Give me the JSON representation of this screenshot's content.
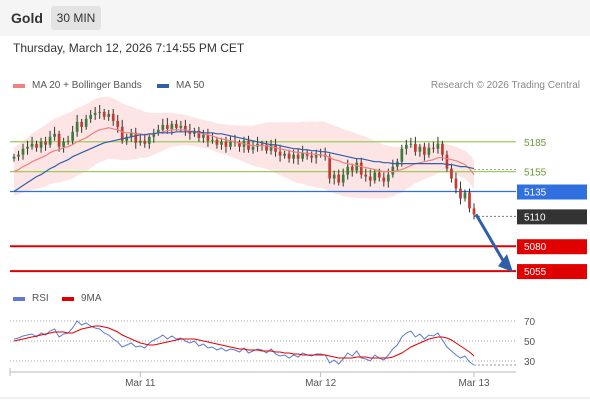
{
  "header": {
    "instrument": "Gold",
    "timeframe": "30 MIN"
  },
  "timestamp": "Thursday, March 12, 2026 7:14:55 PM CET",
  "legend_top": [
    {
      "label": "MA 20 + Bollinger Bands",
      "color": "#f08080"
    },
    {
      "label": "MA 50",
      "color": "#2f5fa8"
    }
  ],
  "credit": "Research © 2026 Trading Central",
  "legend_bottom": [
    {
      "label": "RSI",
      "color": "#5b7bd5"
    },
    {
      "label": "9MA",
      "color": "#e00000"
    }
  ],
  "chart_data": [
    {
      "type": "candlestick",
      "ylim": [
        5040,
        5230
      ],
      "x_ticks": [
        "Mar 11",
        "Mar 12",
        "Mar 13"
      ],
      "levels": [
        {
          "value": 5185,
          "label": "5185",
          "color": "#9acd5b",
          "kind": "resistance"
        },
        {
          "value": 5155,
          "label": "5155",
          "color": "#9acd5b",
          "kind": "resistance"
        },
        {
          "value": 5135,
          "label": "5135",
          "color": "#2f6fe0",
          "kind": "pivot"
        },
        {
          "value": 5110,
          "label": "5110",
          "color": "#333333",
          "kind": "last"
        },
        {
          "value": 5080,
          "label": "5080",
          "color": "#e00000",
          "kind": "support"
        },
        {
          "value": 5055,
          "label": "5055",
          "color": "#e00000",
          "kind": "support"
        }
      ],
      "close": [
        5170,
        5172,
        5178,
        5180,
        5183,
        5179,
        5185,
        5182,
        5190,
        5193,
        5180,
        5185,
        5186,
        5195,
        5205,
        5200,
        5208,
        5212,
        5214,
        5215,
        5210,
        5213,
        5206,
        5200,
        5186,
        5190,
        5194,
        5184,
        5186,
        5183,
        5190,
        5194,
        5197,
        5202,
        5198,
        5203,
        5199,
        5201,
        5196,
        5193,
        5196,
        5189,
        5192,
        5186,
        5187,
        5182,
        5185,
        5180,
        5185,
        5184,
        5180,
        5186,
        5177,
        5180,
        5183,
        5182,
        5176,
        5182,
        5175,
        5171,
        5173,
        5168,
        5172,
        5168,
        5174,
        5171,
        5169,
        5172,
        5172,
        5170,
        5148,
        5152,
        5144,
        5152,
        5160,
        5156,
        5164,
        5152,
        5150,
        5146,
        5154,
        5149,
        5145,
        5152,
        5160,
        5165,
        5178,
        5182,
        5183,
        5175,
        5180,
        5172,
        5179,
        5178,
        5183,
        5172,
        5158,
        5148,
        5138,
        5128,
        5134,
        5118,
        5112
      ],
      "ma20": [
        5155,
        5157,
        5160,
        5162,
        5165,
        5167,
        5169,
        5171,
        5174,
        5176,
        5177,
        5179,
        5180,
        5182,
        5185,
        5187,
        5189,
        5192,
        5195,
        5197,
        5198,
        5199,
        5198,
        5197,
        5195,
        5194,
        5194,
        5193,
        5193,
        5192,
        5192,
        5193,
        5194,
        5195,
        5196,
        5197,
        5197,
        5197,
        5197,
        5196,
        5195,
        5194,
        5193,
        5192,
        5191,
        5189,
        5188,
        5187,
        5186,
        5185,
        5184,
        5183,
        5182,
        5181,
        5181,
        5181,
        5181,
        5180,
        5179,
        5178,
        5177,
        5176,
        5175,
        5174,
        5174,
        5173,
        5173,
        5172,
        5172,
        5171,
        5169,
        5167,
        5166,
        5164,
        5163,
        5162,
        5161,
        5160,
        5159,
        5158,
        5157,
        5156,
        5155,
        5155,
        5155,
        5156,
        5157,
        5159,
        5161,
        5163,
        5164,
        5165,
        5166,
        5167,
        5169,
        5169,
        5168,
        5167,
        5166,
        5164,
        5162,
        5158,
        5152
      ],
      "ma50": [
        5135,
        5138,
        5141,
        5144,
        5147,
        5150,
        5152,
        5155,
        5158,
        5160,
        5163,
        5165,
        5167,
        5170,
        5172,
        5174,
        5176,
        5178,
        5180,
        5182,
        5184,
        5185,
        5186,
        5187,
        5188,
        5189,
        5190,
        5191,
        5192,
        5192,
        5193,
        5193,
        5194,
        5194,
        5194,
        5194,
        5195,
        5195,
        5195,
        5195,
        5195,
        5195,
        5194,
        5194,
        5194,
        5193,
        5193,
        5192,
        5191,
        5190,
        5189,
        5188,
        5187,
        5186,
        5185,
        5184,
        5183,
        5182,
        5182,
        5181,
        5180,
        5179,
        5178,
        5178,
        5177,
        5177,
        5176,
        5176,
        5175,
        5175,
        5174,
        5173,
        5172,
        5171,
        5170,
        5169,
        5168,
        5168,
        5167,
        5166,
        5165,
        5165,
        5164,
        5164,
        5163,
        5163,
        5163,
        5163,
        5163,
        5163,
        5163,
        5163,
        5163,
        5163,
        5163,
        5163,
        5162,
        5162,
        5161,
        5160,
        5160,
        5159,
        5158
      ]
    },
    {
      "type": "line",
      "ylim": [
        20,
        85
      ],
      "y_ticks": [
        70,
        50,
        30
      ],
      "rsi": [
        52,
        53,
        55,
        56,
        57,
        54,
        58,
        56,
        60,
        62,
        54,
        57,
        58,
        63,
        70,
        66,
        68,
        65,
        63,
        62,
        58,
        56,
        52,
        49,
        44,
        46,
        48,
        44,
        45,
        43,
        48,
        51,
        53,
        56,
        52,
        55,
        52,
        53,
        50,
        48,
        50,
        45,
        47,
        43,
        44,
        41,
        43,
        40,
        42,
        41,
        39,
        43,
        38,
        40,
        42,
        41,
        38,
        42,
        37,
        35,
        36,
        33,
        36,
        34,
        38,
        36,
        35,
        37,
        37,
        36,
        28,
        31,
        27,
        32,
        38,
        35,
        40,
        33,
        32,
        30,
        36,
        33,
        31,
        36,
        42,
        46,
        54,
        58,
        60,
        54,
        57,
        52,
        56,
        55,
        58,
        51,
        44,
        40,
        36,
        33,
        35,
        29,
        26
      ],
      "rsi_ma9": [
        50,
        51,
        52,
        53,
        54,
        55,
        56,
        57,
        58,
        59,
        59,
        59,
        58,
        58,
        60,
        62,
        63,
        64,
        65,
        65,
        64,
        63,
        61,
        59,
        56,
        54,
        52,
        50,
        48,
        47,
        46,
        46,
        47,
        48,
        49,
        50,
        51,
        52,
        52,
        52,
        52,
        51,
        50,
        49,
        48,
        47,
        46,
        45,
        44,
        43,
        42,
        42,
        41,
        41,
        41,
        40,
        40,
        40,
        39,
        39,
        38,
        38,
        37,
        37,
        36,
        36,
        36,
        36,
        36,
        36,
        35,
        34,
        33,
        33,
        33,
        33,
        34,
        34,
        34,
        33,
        33,
        33,
        33,
        33,
        34,
        36,
        38,
        41,
        44,
        46,
        48,
        50,
        52,
        53,
        54,
        54,
        53,
        51,
        48,
        45,
        42,
        39,
        35
      ]
    }
  ]
}
